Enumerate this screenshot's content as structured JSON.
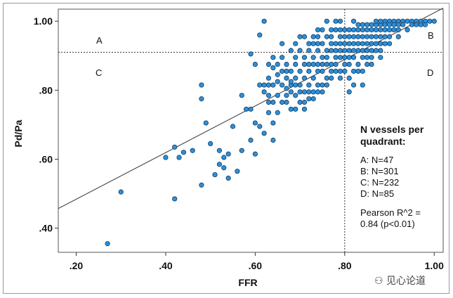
{
  "chart_data": {
    "type": "scatter",
    "title": "",
    "xlabel": "FFR",
    "ylabel": "Pd/Pa",
    "xlim": [
      0.16,
      1.02
    ],
    "ylim": [
      0.33,
      1.035
    ],
    "x_ticks": [
      0.2,
      0.4,
      0.6,
      0.8,
      1.0
    ],
    "x_tick_labels": [
      ".20",
      ".40",
      ".60",
      ".80",
      "1.00"
    ],
    "y_ticks": [
      0.4,
      0.6,
      0.8,
      1.0
    ],
    "y_tick_labels": [
      ".40",
      ".60",
      ".80",
      "1.00"
    ],
    "threshold_x": 0.8,
    "threshold_y": 0.91,
    "fit_line": {
      "x": [
        0.16,
        1.02
      ],
      "y": [
        0.457,
        1.038
      ]
    },
    "point_color": "#2f8fd6",
    "point_edge": "#0d3b66",
    "quadrant_labels": [
      "A",
      "B",
      "C",
      "D"
    ],
    "legend": {
      "title_lines": [
        "N vessels per",
        "quadrant:"
      ],
      "items": [
        "A: N=47",
        "B: N=301",
        "C: N=232",
        "D: N=85"
      ],
      "note_lines": [
        "Pearson R^2 =",
        "0.84 (p<0.01)"
      ]
    },
    "points": [
      [
        0.27,
        0.355
      ],
      [
        0.3,
        0.505
      ],
      [
        0.4,
        0.605
      ],
      [
        0.42,
        0.635
      ],
      [
        0.42,
        0.485
      ],
      [
        0.43,
        0.605
      ],
      [
        0.44,
        0.62
      ],
      [
        0.46,
        0.625
      ],
      [
        0.48,
        0.815
      ],
      [
        0.48,
        0.775
      ],
      [
        0.49,
        0.705
      ],
      [
        0.5,
        0.645
      ],
      [
        0.48,
        0.525
      ],
      [
        0.51,
        0.555
      ],
      [
        0.52,
        0.585
      ],
      [
        0.52,
        0.625
      ],
      [
        0.53,
        0.575
      ],
      [
        0.53,
        0.605
      ],
      [
        0.54,
        0.545
      ],
      [
        0.54,
        0.615
      ],
      [
        0.55,
        0.695
      ],
      [
        0.56,
        0.565
      ],
      [
        0.57,
        0.625
      ],
      [
        0.57,
        0.785
      ],
      [
        0.58,
        0.745
      ],
      [
        0.59,
        0.745
      ],
      [
        0.59,
        0.905
      ],
      [
        0.59,
        0.655
      ],
      [
        0.6,
        0.705
      ],
      [
        0.6,
        0.615
      ],
      [
        0.6,
        0.875
      ],
      [
        0.61,
        0.815
      ],
      [
        0.61,
        0.695
      ],
      [
        0.61,
        0.96
      ],
      [
        0.62,
        0.795
      ],
      [
        0.62,
        0.815
      ],
      [
        0.62,
        0.675
      ],
      [
        0.62,
        1.0
      ],
      [
        0.63,
        0.815
      ],
      [
        0.63,
        0.765
      ],
      [
        0.63,
        0.785
      ],
      [
        0.63,
        0.735
      ],
      [
        0.63,
        0.835
      ],
      [
        0.64,
        0.765
      ],
      [
        0.64,
        0.815
      ],
      [
        0.64,
        0.705
      ],
      [
        0.64,
        0.655
      ],
      [
        0.64,
        0.865
      ],
      [
        0.65,
        0.825
      ],
      [
        0.65,
        0.845
      ],
      [
        0.65,
        0.785
      ],
      [
        0.65,
        0.735
      ],
      [
        0.66,
        0.815
      ],
      [
        0.66,
        0.895
      ],
      [
        0.66,
        0.765
      ],
      [
        0.66,
        0.935
      ],
      [
        0.67,
        0.835
      ],
      [
        0.67,
        0.805
      ],
      [
        0.67,
        0.765
      ],
      [
        0.67,
        0.875
      ],
      [
        0.67,
        0.785
      ],
      [
        0.68,
        0.855
      ],
      [
        0.68,
        0.815
      ],
      [
        0.68,
        0.745
      ],
      [
        0.68,
        0.915
      ],
      [
        0.68,
        0.825
      ],
      [
        0.69,
        0.875
      ],
      [
        0.69,
        0.835
      ],
      [
        0.69,
        0.785
      ],
      [
        0.69,
        0.745
      ],
      [
        0.69,
        0.895
      ],
      [
        0.7,
        0.855
      ],
      [
        0.7,
        0.815
      ],
      [
        0.7,
        0.915
      ],
      [
        0.7,
        0.765
      ],
      [
        0.7,
        0.955
      ],
      [
        0.71,
        0.875
      ],
      [
        0.71,
        0.835
      ],
      [
        0.71,
        0.895
      ],
      [
        0.71,
        0.795
      ],
      [
        0.71,
        0.745
      ],
      [
        0.72,
        0.915
      ],
      [
        0.72,
        0.855
      ],
      [
        0.72,
        0.815
      ],
      [
        0.72,
        0.935
      ],
      [
        0.72,
        0.775
      ],
      [
        0.73,
        0.895
      ],
      [
        0.73,
        0.875
      ],
      [
        0.73,
        0.835
      ],
      [
        0.73,
        0.955
      ],
      [
        0.73,
        0.795
      ],
      [
        0.74,
        0.915
      ],
      [
        0.74,
        0.875
      ],
      [
        0.74,
        0.855
      ],
      [
        0.74,
        0.935
      ],
      [
        0.74,
        0.815
      ],
      [
        0.74,
        0.975
      ],
      [
        0.75,
        0.895
      ],
      [
        0.75,
        0.935
      ],
      [
        0.75,
        0.855
      ],
      [
        0.75,
        0.875
      ],
      [
        0.75,
        0.815
      ],
      [
        0.76,
        0.915
      ],
      [
        0.76,
        0.955
      ],
      [
        0.76,
        0.875
      ],
      [
        0.76,
        0.895
      ],
      [
        0.76,
        0.835
      ],
      [
        0.76,
        1.0
      ],
      [
        0.77,
        0.935
      ],
      [
        0.77,
        0.915
      ],
      [
        0.77,
        0.875
      ],
      [
        0.77,
        0.955
      ],
      [
        0.77,
        0.855
      ],
      [
        0.78,
        0.935
      ],
      [
        0.78,
        0.895
      ],
      [
        0.78,
        0.915
      ],
      [
        0.78,
        0.975
      ],
      [
        0.78,
        0.875
      ],
      [
        0.79,
        0.955
      ],
      [
        0.79,
        0.915
      ],
      [
        0.79,
        0.895
      ],
      [
        0.79,
        0.935
      ],
      [
        0.79,
        0.855
      ],
      [
        0.79,
        1.0
      ],
      [
        0.8,
        0.935
      ],
      [
        0.8,
        0.955
      ],
      [
        0.8,
        0.915
      ],
      [
        0.8,
        0.895
      ],
      [
        0.8,
        0.975
      ],
      [
        0.81,
        0.955
      ],
      [
        0.81,
        0.935
      ],
      [
        0.81,
        0.915
      ],
      [
        0.81,
        0.975
      ],
      [
        0.81,
        0.895
      ],
      [
        0.81,
        0.875
      ],
      [
        0.82,
        0.955
      ],
      [
        0.82,
        0.975
      ],
      [
        0.82,
        0.935
      ],
      [
        0.82,
        0.915
      ],
      [
        0.82,
        1.0
      ],
      [
        0.82,
        0.895
      ],
      [
        0.83,
        0.975
      ],
      [
        0.83,
        0.955
      ],
      [
        0.83,
        0.935
      ],
      [
        0.83,
        0.915
      ],
      [
        0.83,
        0.99
      ],
      [
        0.83,
        0.855
      ],
      [
        0.84,
        0.975
      ],
      [
        0.84,
        0.955
      ],
      [
        0.84,
        0.935
      ],
      [
        0.84,
        0.915
      ],
      [
        0.84,
        0.99
      ],
      [
        0.85,
        0.975
      ],
      [
        0.85,
        0.955
      ],
      [
        0.85,
        0.99
      ],
      [
        0.85,
        0.935
      ],
      [
        0.85,
        0.915
      ],
      [
        0.85,
        0.895
      ],
      [
        0.86,
        0.99
      ],
      [
        0.86,
        0.975
      ],
      [
        0.86,
        0.955
      ],
      [
        0.86,
        0.935
      ],
      [
        0.86,
        0.915
      ],
      [
        0.87,
        0.99
      ],
      [
        0.87,
        0.975
      ],
      [
        0.87,
        0.955
      ],
      [
        0.87,
        0.935
      ],
      [
        0.87,
        1.0
      ],
      [
        0.88,
        0.99
      ],
      [
        0.88,
        0.975
      ],
      [
        0.88,
        0.955
      ],
      [
        0.88,
        1.0
      ],
      [
        0.88,
        0.935
      ],
      [
        0.89,
        1.0
      ],
      [
        0.89,
        0.99
      ],
      [
        0.89,
        0.975
      ],
      [
        0.89,
        0.955
      ],
      [
        0.9,
        1.0
      ],
      [
        0.9,
        0.99
      ],
      [
        0.9,
        0.975
      ],
      [
        0.91,
        1.0
      ],
      [
        0.91,
        0.99
      ],
      [
        0.92,
        1.0
      ],
      [
        0.92,
        0.99
      ],
      [
        0.93,
        1.0
      ],
      [
        0.94,
        1.0
      ],
      [
        0.95,
        1.0
      ],
      [
        0.96,
        1.0
      ],
      [
        0.97,
        1.0
      ],
      [
        0.98,
        1.0
      ],
      [
        0.99,
        1.0
      ],
      [
        1.0,
        1.0
      ],
      [
        0.95,
        0.99
      ],
      [
        0.93,
        0.99
      ],
      [
        0.91,
        0.975
      ],
      [
        0.9,
        0.955
      ],
      [
        0.89,
        0.935
      ],
      [
        0.88,
        0.915
      ],
      [
        0.87,
        0.915
      ],
      [
        0.86,
        0.895
      ],
      [
        0.85,
        0.875
      ],
      [
        0.84,
        0.895
      ],
      [
        0.83,
        0.875
      ],
      [
        0.82,
        0.855
      ],
      [
        0.81,
        0.835
      ],
      [
        0.8,
        0.855
      ],
      [
        0.8,
        0.875
      ],
      [
        0.79,
        0.835
      ],
      [
        0.78,
        0.855
      ],
      [
        0.77,
        0.835
      ],
      [
        0.76,
        0.815
      ],
      [
        0.75,
        0.795
      ],
      [
        0.74,
        0.795
      ],
      [
        0.73,
        0.775
      ],
      [
        0.72,
        0.795
      ],
      [
        0.71,
        0.765
      ],
      [
        0.7,
        0.795
      ],
      [
        0.69,
        0.815
      ],
      [
        0.68,
        0.795
      ],
      [
        0.67,
        0.855
      ],
      [
        0.66,
        0.855
      ],
      [
        0.65,
        0.875
      ],
      [
        0.64,
        0.895
      ],
      [
        0.63,
        0.875
      ],
      [
        0.82,
        0.815
      ],
      [
        0.84,
        0.855
      ],
      [
        0.86,
        0.875
      ],
      [
        0.88,
        0.895
      ],
      [
        0.9,
        0.935
      ],
      [
        0.92,
        0.955
      ],
      [
        0.94,
        0.975
      ],
      [
        0.96,
        0.99
      ],
      [
        0.98,
        0.99
      ],
      [
        0.97,
        0.99
      ],
      [
        0.92,
        0.975
      ],
      [
        0.79,
        0.975
      ],
      [
        0.77,
        0.975
      ],
      [
        0.75,
        0.975
      ],
      [
        0.73,
        0.935
      ],
      [
        0.71,
        0.955
      ],
      [
        0.78,
        1.0
      ],
      [
        0.74,
        0.955
      ],
      [
        0.69,
        0.935
      ],
      [
        0.72,
        0.875
      ],
      [
        0.84,
        0.815
      ],
      [
        0.81,
        0.795
      ]
    ]
  }
}
